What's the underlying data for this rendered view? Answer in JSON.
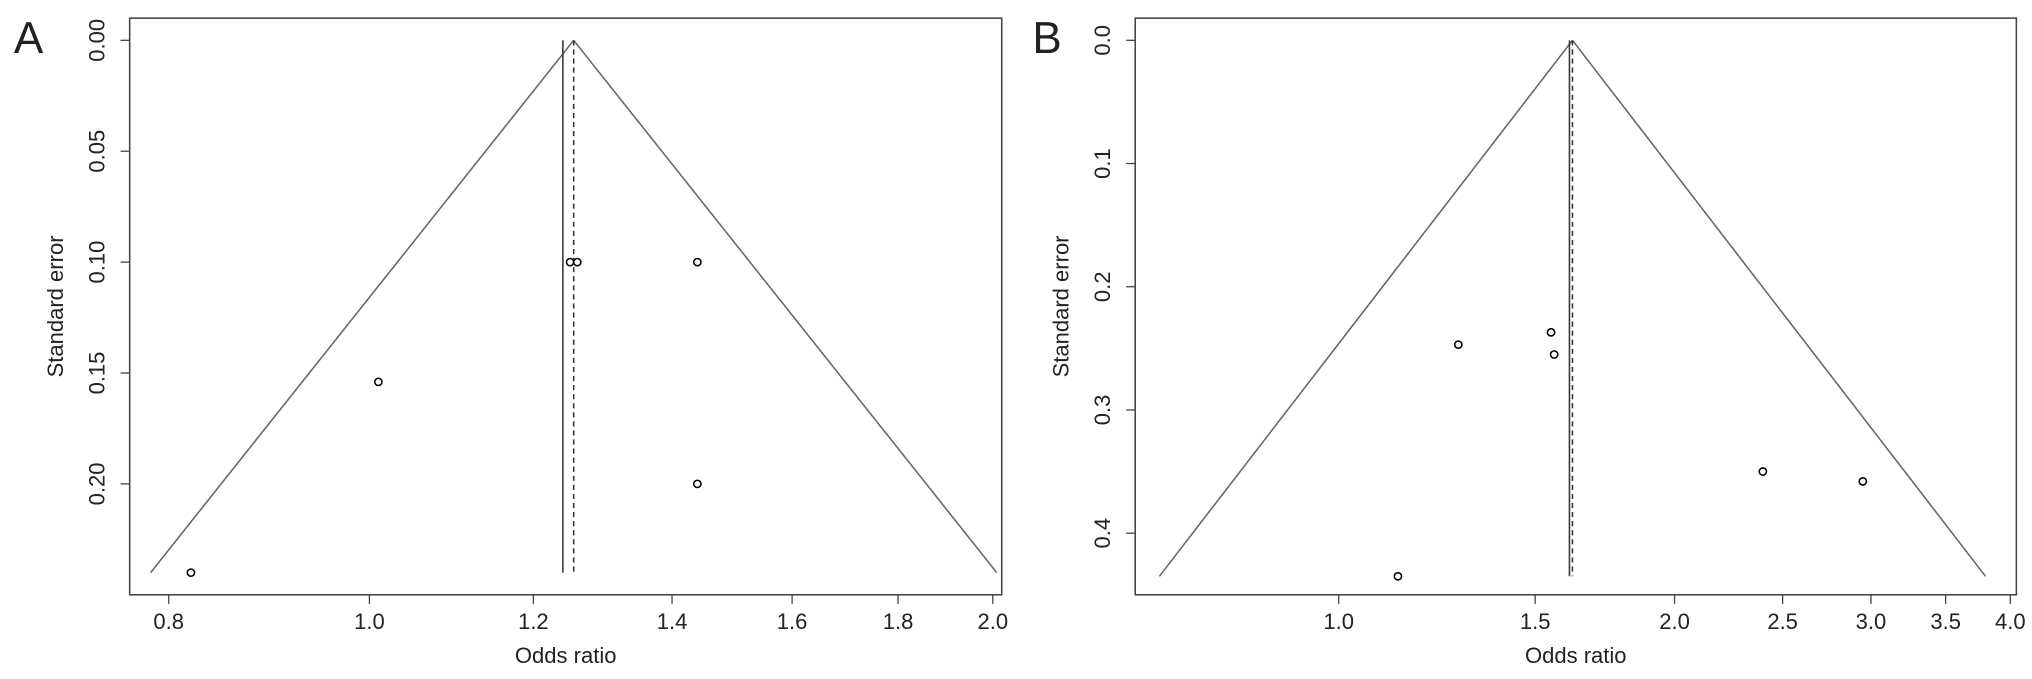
{
  "chart_data": [
    {
      "type": "funnel",
      "panel_label": "A",
      "x_label": "Odds ratio",
      "y_label": "Standard error",
      "x_log": true,
      "y_reversed": true,
      "xlim": [
        0.766,
        2.02
      ],
      "ylim": [
        -0.01,
        0.25
      ],
      "xticks": [
        0.8,
        {
          "value": 1,
          "label": "1.0"
        },
        1.2,
        1.4,
        1.6,
        1.8,
        {
          "value": 2,
          "label": "2.0"
        }
      ],
      "yticks": [
        {
          "value": 0,
          "label": "0.00"
        },
        0.05,
        {
          "value": 0.1,
          "label": "0.10"
        },
        0.15,
        {
          "value": 0.2,
          "label": "0.20"
        }
      ],
      "x": [
        1.25,
        1.26,
        1.44,
        1.01,
        1.44,
        0.82
      ],
      "y": [
        0.1,
        0.1,
        0.1,
        0.154,
        0.2,
        0.24
      ],
      "funnel_se_max": 0.24,
      "reference_lines": [
        {
          "value": 1.24,
          "style": "solid"
        },
        {
          "value": 1.255,
          "style": "dashed"
        }
      ],
      "color": "#000000"
    },
    {
      "type": "funnel",
      "panel_label": "B",
      "x_label": "Odds ratio",
      "y_label": "Standard error",
      "x_log": true,
      "y_reversed": true,
      "xlim": [
        0.657,
        4.05
      ],
      "ylim": [
        -0.018,
        0.45
      ],
      "xticks": [
        {
          "value": 1,
          "label": "1.0"
        },
        1.5,
        {
          "value": 2,
          "label": "2.0"
        },
        2.5,
        {
          "value": 3,
          "label": "3.0"
        },
        3.5,
        {
          "value": 4,
          "label": "4.0"
        }
      ],
      "yticks": [
        {
          "value": 0,
          "label": "0.0"
        },
        0.1,
        0.2,
        0.3,
        0.4
      ],
      "x": [
        1.55,
        1.56,
        1.28,
        2.4,
        2.95,
        1.13
      ],
      "y": [
        0.237,
        0.255,
        0.247,
        0.35,
        0.358,
        0.435
      ],
      "funnel_se_max": 0.435,
      "reference_lines": [
        {
          "value": 1.61,
          "style": "solid"
        },
        {
          "value": 1.62,
          "style": "dashed"
        }
      ],
      "color": "#000000"
    }
  ]
}
